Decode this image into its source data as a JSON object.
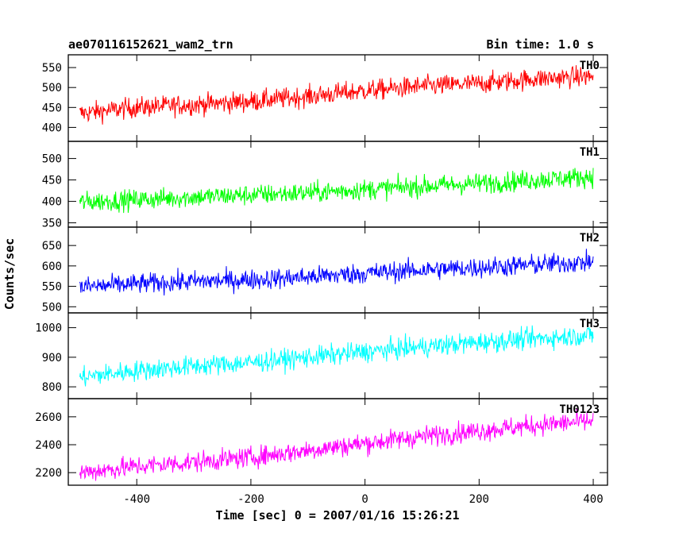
{
  "chart_data": {
    "type": "line",
    "title": "ae070116152621_wam2_trn",
    "subtitle": "Bin time: 1.0 s",
    "xlabel": "Time [sec] 0 = 2007/01/16 15:26:21",
    "ylabel": "Counts/sec",
    "xlim": [
      -520,
      425
    ],
    "xticks": [
      -400,
      -200,
      0,
      200,
      400
    ],
    "grid": false,
    "panels": [
      {
        "name": "TH0",
        "color": "#ff0000",
        "ylim": [
          365,
          582
        ],
        "yticks": [
          400,
          450,
          500,
          550
        ],
        "x": [
          -500,
          -400,
          -300,
          -200,
          -100,
          0,
          100,
          200,
          300,
          400
        ],
        "values": [
          435,
          450,
          457,
          465,
          478,
          492,
          503,
          510,
          522,
          528
        ]
      },
      {
        "name": "TH1",
        "color": "#00ff00",
        "ylim": [
          340,
          540
        ],
        "yticks": [
          350,
          400,
          450,
          500
        ],
        "x": [
          -500,
          -400,
          -300,
          -200,
          -100,
          0,
          100,
          200,
          300,
          400
        ],
        "values": [
          398,
          404,
          410,
          415,
          420,
          428,
          435,
          442,
          450,
          458
        ]
      },
      {
        "name": "TH2",
        "color": "#0000ff",
        "ylim": [
          485,
          695
        ],
        "yticks": [
          500,
          550,
          600,
          650
        ],
        "x": [
          -500,
          -400,
          -300,
          -200,
          -100,
          0,
          100,
          200,
          300,
          400
        ],
        "values": [
          548,
          556,
          562,
          566,
          573,
          582,
          590,
          596,
          603,
          610
        ]
      },
      {
        "name": "TH3",
        "color": "#00ffff",
        "ylim": [
          760,
          1050
        ],
        "yticks": [
          800,
          900,
          1000
        ],
        "x": [
          -500,
          -400,
          -300,
          -200,
          -100,
          0,
          100,
          200,
          300,
          400
        ],
        "values": [
          832,
          855,
          870,
          882,
          900,
          918,
          935,
          950,
          963,
          975
        ]
      },
      {
        "name": "TH0123",
        "color": "#ff00ff",
        "ylim": [
          2110,
          2730
        ],
        "yticks": [
          2200,
          2400,
          2600
        ],
        "x": [
          -500,
          -400,
          -300,
          -200,
          -100,
          0,
          100,
          200,
          300,
          400
        ],
        "values": [
          2200,
          2245,
          2275,
          2310,
          2360,
          2410,
          2460,
          2500,
          2540,
          2570
        ]
      }
    ]
  }
}
